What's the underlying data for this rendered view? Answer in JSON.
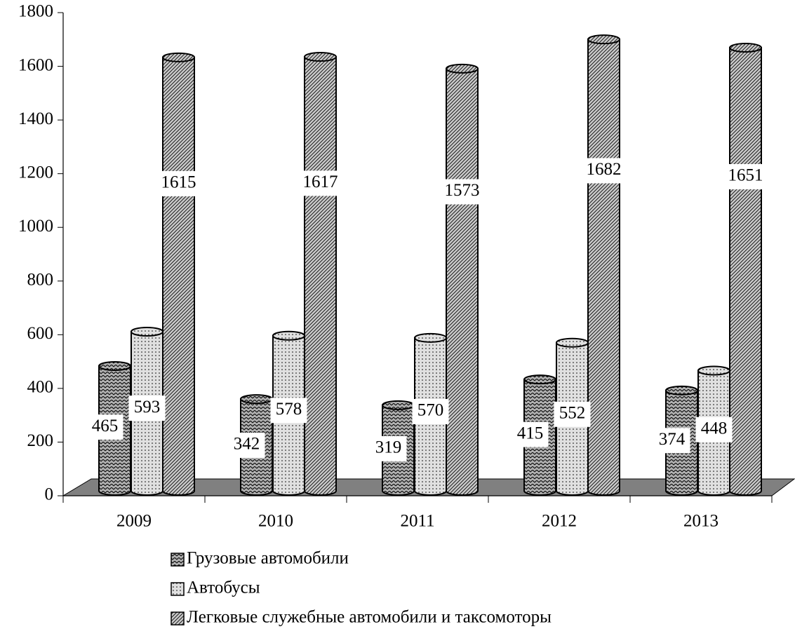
{
  "chart_data": {
    "type": "bar",
    "categories": [
      "2009",
      "2010",
      "2011",
      "2012",
      "2013"
    ],
    "series": [
      {
        "name": "Грузовые автомобили",
        "color": "#b0b0b0",
        "values": [
          465,
          342,
          319,
          415,
          374
        ]
      },
      {
        "name": "Автобусы",
        "color": "#e0e0e0",
        "values": [
          593,
          578,
          570,
          552,
          448
        ]
      },
      {
        "name": "Легковые служебные автомобили и таксомоторы",
        "color": "#c8c8c8",
        "values": [
          1615,
          1617,
          1573,
          1682,
          1651
        ]
      }
    ],
    "ylim": [
      0,
      1800
    ],
    "yticks": [
      0,
      200,
      400,
      600,
      800,
      1000,
      1200,
      1400,
      1600,
      1800
    ]
  }
}
